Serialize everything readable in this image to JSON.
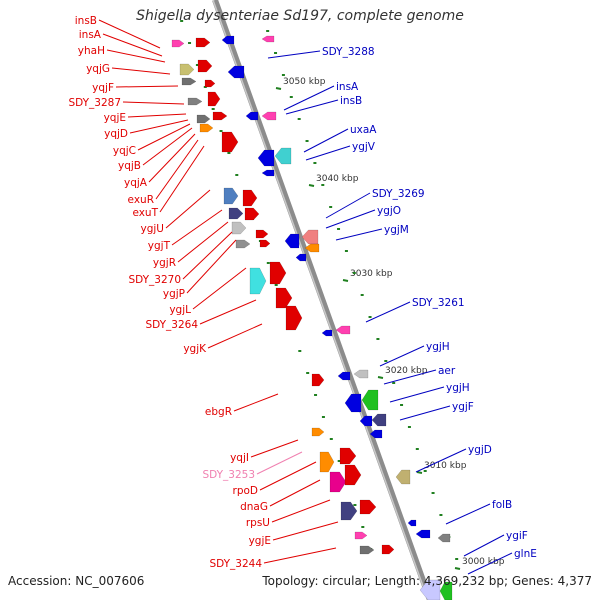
{
  "title": "Shigella dysenteriae Sd197, complete genome",
  "accession": "Accession: NC_007606",
  "summary": "Topology: circular; Length: 4,369,232 bp; Genes: 4,377",
  "colors": {
    "left_label": "#e00000",
    "right_label": "#0000c0",
    "rna_label": "#f080b0",
    "backbone": "#909090",
    "tick": "#208020"
  },
  "ticks": [
    {
      "label": "3050 kbp"
    },
    {
      "label": "3040 kbp"
    },
    {
      "label": "3030 kbp"
    },
    {
      "label": "3020 kbp"
    },
    {
      "label": "3010 kbp"
    },
    {
      "label": "3000 kbp"
    }
  ],
  "left_genes": [
    {
      "label": "insB"
    },
    {
      "label": "insA"
    },
    {
      "label": "yhaH"
    },
    {
      "label": "yqjG"
    },
    {
      "label": "yqjF"
    },
    {
      "label": "SDY_3287"
    },
    {
      "label": "yqjE"
    },
    {
      "label": "yqjD"
    },
    {
      "label": "yqjC"
    },
    {
      "label": "yqjB"
    },
    {
      "label": "yqjA"
    },
    {
      "label": "exuR"
    },
    {
      "label": "exuT"
    },
    {
      "label": "ygjU"
    },
    {
      "label": "ygjT"
    },
    {
      "label": "ygjR"
    },
    {
      "label": "SDY_3270"
    },
    {
      "label": "ygjP"
    },
    {
      "label": "ygjL"
    },
    {
      "label": "SDY_3264"
    },
    {
      "label": "ygjK"
    },
    {
      "label": "ebgR"
    },
    {
      "label": "yqjI"
    },
    {
      "label": "SDY_3253"
    },
    {
      "label": "rpoD"
    },
    {
      "label": "dnaG"
    },
    {
      "label": "rpsU"
    },
    {
      "label": "ygjE"
    },
    {
      "label": "SDY_3244"
    }
  ],
  "right_genes": [
    {
      "label": "SDY_3288"
    },
    {
      "label": "insA"
    },
    {
      "label": "insB"
    },
    {
      "label": "uxaA"
    },
    {
      "label": "ygjV"
    },
    {
      "label": "SDY_3269"
    },
    {
      "label": "ygjO"
    },
    {
      "label": "ygjM"
    },
    {
      "label": "SDY_3261"
    },
    {
      "label": "ygjH"
    },
    {
      "label": "aer"
    },
    {
      "label": "ygjH"
    },
    {
      "label": "ygjF"
    },
    {
      "label": "ygjD"
    },
    {
      "label": "folB"
    },
    {
      "label": "ygiF"
    },
    {
      "label": "glnE"
    }
  ]
}
